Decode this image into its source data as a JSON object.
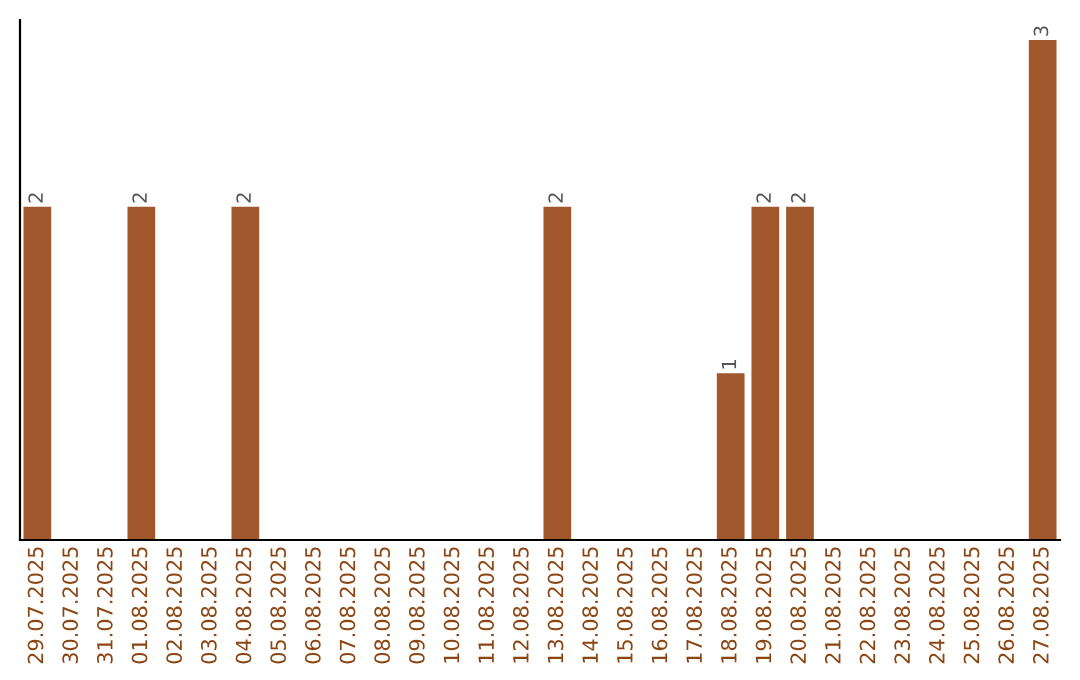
{
  "chart_data": {
    "type": "bar",
    "categories": [
      "29.07.2025",
      "30.07.2025",
      "31.07.2025",
      "01.08.2025",
      "02.08.2025",
      "03.08.2025",
      "04.08.2025",
      "05.08.2025",
      "06.08.2025",
      "07.08.2025",
      "08.08.2025",
      "09.08.2025",
      "10.08.2025",
      "11.08.2025",
      "12.08.2025",
      "13.08.2025",
      "14.08.2025",
      "15.08.2025",
      "16.08.2025",
      "17.08.2025",
      "18.08.2025",
      "19.08.2025",
      "20.08.2025",
      "21.08.2025",
      "22.08.2025",
      "23.08.2025",
      "24.08.2025",
      "25.08.2025",
      "26.08.2025",
      "27.08.2025"
    ],
    "values": [
      2,
      0,
      0,
      2,
      0,
      0,
      2,
      0,
      0,
      0,
      0,
      0,
      0,
      0,
      0,
      2,
      0,
      0,
      0,
      0,
      1,
      2,
      2,
      0,
      0,
      0,
      0,
      0,
      0,
      3
    ],
    "value_labels": [
      "2",
      null,
      null,
      "2",
      null,
      null,
      "2",
      null,
      null,
      null,
      null,
      null,
      null,
      null,
      null,
      "2",
      null,
      null,
      null,
      null,
      "1",
      "2",
      "2",
      null,
      null,
      null,
      null,
      null,
      null,
      "3"
    ],
    "color": "#a0582c",
    "grid": false,
    "legend": false,
    "tick_labels": "x"
  }
}
